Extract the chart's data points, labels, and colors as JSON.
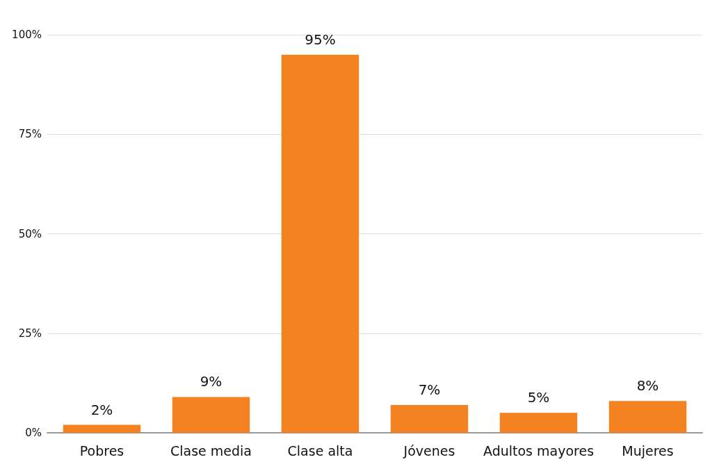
{
  "chart_data": {
    "type": "bar",
    "categories": [
      "Pobres",
      "Clase media",
      "Clase alta",
      "Jóvenes",
      "Adultos mayores",
      "Mujeres"
    ],
    "values": [
      2,
      9,
      95,
      7,
      5,
      8
    ],
    "value_labels": [
      "2%",
      "9%",
      "95%",
      "7%",
      "5%",
      "8%"
    ],
    "color": "#f58220",
    "ylim": [
      0,
      100
    ],
    "yticks": [
      {
        "value": 0,
        "label": "0%"
      },
      {
        "value": 25,
        "label": "25%"
      },
      {
        "value": 50,
        "label": "50%"
      },
      {
        "value": 75,
        "label": "75%"
      },
      {
        "value": 100,
        "label": "100%"
      }
    ],
    "grid": "y"
  }
}
